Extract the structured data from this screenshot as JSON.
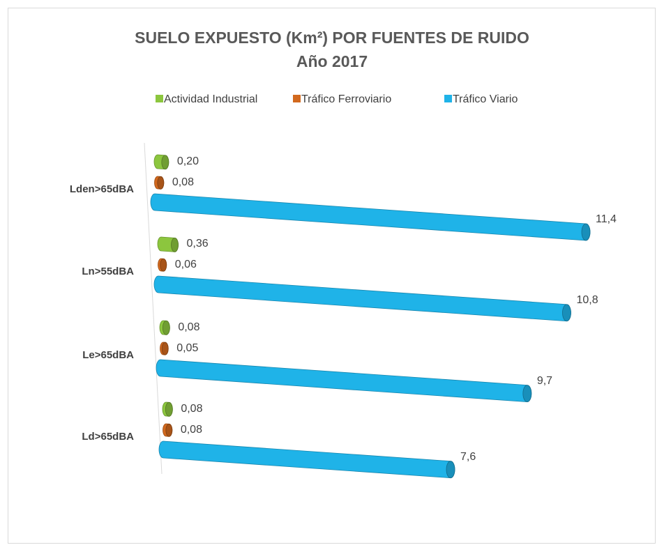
{
  "chart_data": {
    "type": "bar",
    "orientation": "horizontal",
    "title": "SUELO EXPUESTO (Km²) POR FUENTES DE RUIDO",
    "subtitle": "Año 2017",
    "categories": [
      "Lden>65dBA",
      "Ln>55dBA",
      "Le>65dBA",
      "Ld>65dBA"
    ],
    "series": [
      {
        "name": "Actividad Industrial",
        "color": "#8cc63e",
        "values": [
          0.2,
          0.36,
          0.08,
          0.08
        ],
        "value_labels": [
          "0,20",
          "0,36",
          "0,08",
          "0,08"
        ]
      },
      {
        "name": "Tráfico Ferroviario",
        "color": "#d2691e",
        "values": [
          0.08,
          0.06,
          0.05,
          0.08
        ],
        "value_labels": [
          "0,08",
          "0,06",
          "0,05",
          "0,08"
        ]
      },
      {
        "name": "Tráfico Viario",
        "color": "#1fb3e8",
        "values": [
          11.4,
          10.8,
          9.7,
          7.6
        ],
        "value_labels": [
          "11,4",
          "10,8",
          "9,7",
          "7,6"
        ]
      }
    ],
    "legend": "top"
  }
}
